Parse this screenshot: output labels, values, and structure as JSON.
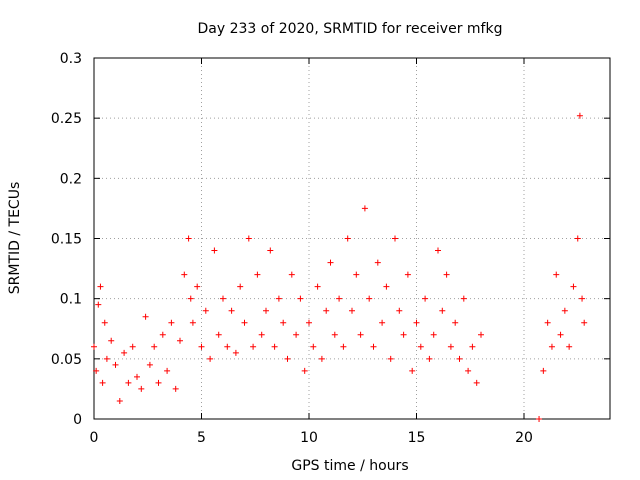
{
  "chart_data": {
    "type": "scatter",
    "title": "Day 233 of 2020, SRMTID for receiver mfkg",
    "xlabel": "GPS time / hours",
    "ylabel": "SRMTID / TECUs",
    "xlim": [
      0,
      24
    ],
    "ylim": [
      0,
      0.3
    ],
    "xticks": [
      0,
      5,
      10,
      15,
      20
    ],
    "xtick_labels": [
      "0",
      "5",
      "10",
      "15",
      "20"
    ],
    "yticks": [
      0,
      0.05,
      0.1,
      0.15,
      0.2,
      0.25,
      0.3
    ],
    "ytick_labels": [
      "0",
      "0.05",
      "0.1",
      "0.15",
      "0.2",
      "0.25",
      "0.3"
    ],
    "grid": true,
    "marker": "+",
    "color": "#ff0000",
    "series": [
      {
        "name": "SRMTID",
        "x": [
          0.0,
          0.1,
          0.2,
          0.3,
          0.4,
          0.5,
          0.6,
          0.8,
          1.0,
          1.2,
          1.4,
          1.6,
          1.8,
          2.0,
          2.2,
          2.4,
          2.6,
          2.8,
          3.0,
          3.2,
          3.4,
          3.6,
          3.8,
          4.0,
          4.2,
          4.4,
          4.5,
          4.6,
          4.8,
          5.0,
          5.2,
          5.4,
          5.6,
          5.8,
          6.0,
          6.2,
          6.4,
          6.6,
          6.8,
          7.0,
          7.2,
          7.4,
          7.6,
          7.8,
          8.0,
          8.2,
          8.4,
          8.6,
          8.8,
          9.0,
          9.2,
          9.4,
          9.6,
          9.8,
          10.0,
          10.2,
          10.4,
          10.6,
          10.8,
          11.0,
          11.2,
          11.4,
          11.6,
          11.8,
          12.0,
          12.2,
          12.4,
          12.6,
          12.8,
          13.0,
          13.2,
          13.4,
          13.6,
          13.8,
          14.0,
          14.2,
          14.4,
          14.6,
          14.8,
          15.0,
          15.2,
          15.4,
          15.6,
          15.8,
          16.0,
          16.2,
          16.4,
          16.6,
          16.8,
          17.0,
          17.2,
          17.4,
          17.6,
          17.8,
          18.0,
          20.7,
          20.9,
          21.1,
          21.3,
          21.5,
          21.7,
          21.9,
          22.1,
          22.3,
          22.5,
          22.7,
          22.8
        ],
        "y": [
          0.06,
          0.04,
          0.095,
          0.11,
          0.03,
          0.08,
          0.05,
          0.065,
          0.045,
          0.015,
          0.055,
          0.03,
          0.06,
          0.035,
          0.025,
          0.085,
          0.045,
          0.06,
          0.03,
          0.07,
          0.04,
          0.08,
          0.025,
          0.065,
          0.12,
          0.15,
          0.1,
          0.08,
          0.11,
          0.06,
          0.09,
          0.05,
          0.14,
          0.07,
          0.1,
          0.06,
          0.09,
          0.055,
          0.11,
          0.08,
          0.15,
          0.06,
          0.12,
          0.07,
          0.09,
          0.14,
          0.06,
          0.1,
          0.08,
          0.05,
          0.12,
          0.07,
          0.1,
          0.04,
          0.08,
          0.06,
          0.11,
          0.05,
          0.09,
          0.13,
          0.07,
          0.1,
          0.06,
          0.15,
          0.09,
          0.12,
          0.07,
          0.175,
          0.1,
          0.06,
          0.13,
          0.08,
          0.11,
          0.05,
          0.15,
          0.09,
          0.07,
          0.12,
          0.04,
          0.08,
          0.06,
          0.1,
          0.05,
          0.07,
          0.14,
          0.09,
          0.12,
          0.06,
          0.08,
          0.05,
          0.1,
          0.04,
          0.06,
          0.03,
          0.07,
          0.0,
          0.04,
          0.08,
          0.06,
          0.12,
          0.07,
          0.09,
          0.06,
          0.11,
          0.15,
          0.1,
          0.08
        ],
        "y_max_outlier": {
          "x": 22.6,
          "y": 0.252
        }
      }
    ]
  }
}
